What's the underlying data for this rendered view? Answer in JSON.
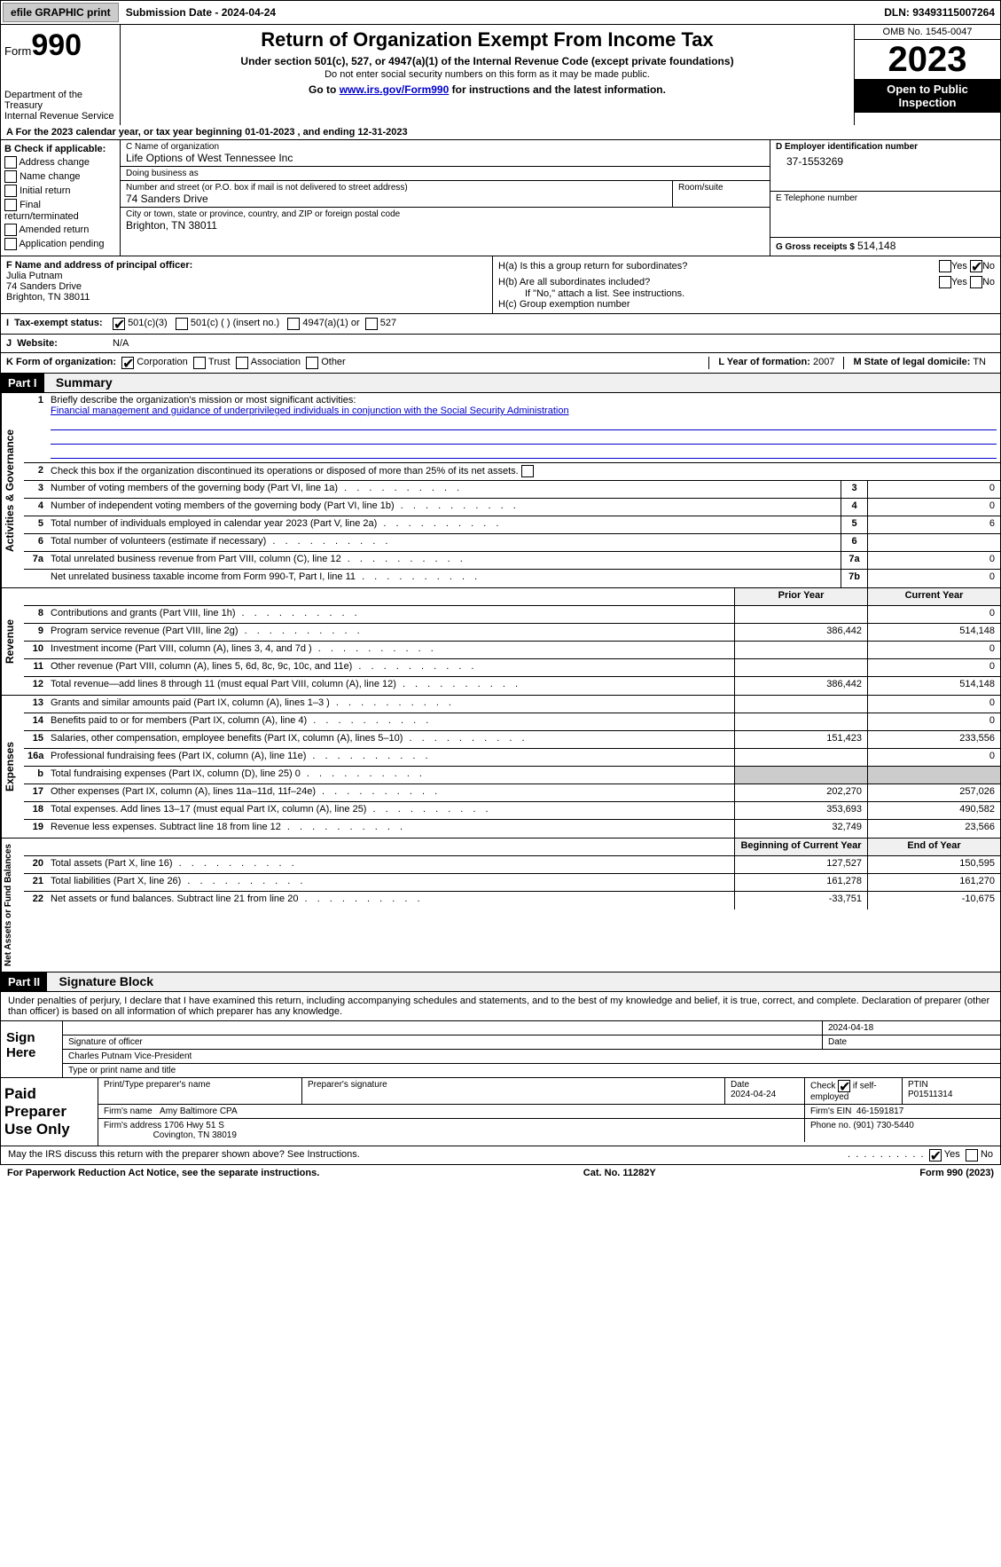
{
  "topbar": {
    "efile": "efile GRAPHIC print",
    "submission": "Submission Date - 2024-04-24",
    "dln": "DLN: 93493115007264"
  },
  "header": {
    "form_label": "Form",
    "form_num": "990",
    "dept": "Department of the Treasury",
    "irs": "Internal Revenue Service",
    "title": "Return of Organization Exempt From Income Tax",
    "subtitle": "Under section 501(c), 527, or 4947(a)(1) of the Internal Revenue Code (except private foundations)",
    "warn": "Do not enter social security numbers on this form as it may be made public.",
    "goto_pre": "Go to ",
    "goto_link": "www.irs.gov/Form990",
    "goto_post": " for instructions and the latest information.",
    "omb": "OMB No. 1545-0047",
    "year": "2023",
    "open": "Open to Public Inspection"
  },
  "line_a": "For the 2023 calendar year, or tax year beginning 01-01-2023    , and ending 12-31-2023",
  "section_b": {
    "hdr": "B Check if applicable:",
    "opts": [
      "Address change",
      "Name change",
      "Initial return",
      "Final return/terminated",
      "Amended return",
      "Application pending"
    ]
  },
  "section_c": {
    "name_lbl": "C Name of organization",
    "name": "Life Options of West Tennessee Inc",
    "dba_lbl": "Doing business as",
    "dba": "",
    "addr_lbl": "Number and street (or P.O. box if mail is not delivered to street address)",
    "addr": "74 Sanders Drive",
    "room_lbl": "Room/suite",
    "city_lbl": "City or town, state or province, country, and ZIP or foreign postal code",
    "city": "Brighton, TN  38011"
  },
  "section_d": {
    "lbl": "D Employer identification number",
    "val": "37-1553269"
  },
  "section_e": {
    "lbl": "E Telephone number",
    "val": ""
  },
  "section_g": {
    "lbl": "G Gross receipts $",
    "val": "514,148"
  },
  "section_f": {
    "lbl": "F  Name and address of principal officer:",
    "name": "Julia Putnam",
    "addr1": "74 Sanders Drive",
    "addr2": "Brighton, TN  38011"
  },
  "section_h": {
    "a": "H(a)  Is this a group return for subordinates?",
    "b": "H(b)  Are all subordinates included?",
    "note": "If \"No,\" attach a list. See instructions.",
    "c": "H(c)  Group exemption number",
    "yes": "Yes",
    "no": "No"
  },
  "line_i": {
    "lbl": "Tax-exempt status:",
    "o1": "501(c)(3)",
    "o2": "501(c) (  ) (insert no.)",
    "o3": "4947(a)(1) or",
    "o4": "527"
  },
  "line_j": {
    "lbl": "Website:",
    "val": "N/A"
  },
  "line_k": {
    "lbl": "K Form of organization:",
    "o1": "Corporation",
    "o2": "Trust",
    "o3": "Association",
    "o4": "Other"
  },
  "line_l": {
    "lbl": "L Year of formation:",
    "val": "2007"
  },
  "line_m": {
    "lbl": "M State of legal domicile:",
    "val": "TN"
  },
  "part1": {
    "hdr": "Part I",
    "title": "Summary"
  },
  "summary": {
    "q1": "Briefly describe the organization's mission or most significant activities:",
    "mission": "Financial management and guidance of underprivileged individuals in conjunction with the Social Security Administration",
    "q2": "Check this box      if the organization discontinued its operations or disposed of more than 25% of its net assets.",
    "rows_gov": [
      {
        "n": "3",
        "d": "Number of voting members of the governing body (Part VI, line 1a)",
        "b": "3",
        "v": "0"
      },
      {
        "n": "4",
        "d": "Number of independent voting members of the governing body (Part VI, line 1b)",
        "b": "4",
        "v": "0"
      },
      {
        "n": "5",
        "d": "Total number of individuals employed in calendar year 2023 (Part V, line 2a)",
        "b": "5",
        "v": "6"
      },
      {
        "n": "6",
        "d": "Total number of volunteers (estimate if necessary)",
        "b": "6",
        "v": ""
      },
      {
        "n": "7a",
        "d": "Total unrelated business revenue from Part VIII, column (C), line 12",
        "b": "7a",
        "v": "0"
      },
      {
        "n": "",
        "d": "Net unrelated business taxable income from Form 990-T, Part I, line 11",
        "b": "7b",
        "v": "0"
      }
    ],
    "prior_hdr": "Prior Year",
    "current_hdr": "Current Year",
    "rows_rev": [
      {
        "n": "8",
        "d": "Contributions and grants (Part VIII, line 1h)",
        "p": "",
        "c": "0"
      },
      {
        "n": "9",
        "d": "Program service revenue (Part VIII, line 2g)",
        "p": "386,442",
        "c": "514,148"
      },
      {
        "n": "10",
        "d": "Investment income (Part VIII, column (A), lines 3, 4, and 7d )",
        "p": "",
        "c": "0"
      },
      {
        "n": "11",
        "d": "Other revenue (Part VIII, column (A), lines 5, 6d, 8c, 9c, 10c, and 11e)",
        "p": "",
        "c": "0"
      },
      {
        "n": "12",
        "d": "Total revenue—add lines 8 through 11 (must equal Part VIII, column (A), line 12)",
        "p": "386,442",
        "c": "514,148"
      }
    ],
    "rows_exp": [
      {
        "n": "13",
        "d": "Grants and similar amounts paid (Part IX, column (A), lines 1–3 )",
        "p": "",
        "c": "0"
      },
      {
        "n": "14",
        "d": "Benefits paid to or for members (Part IX, column (A), line 4)",
        "p": "",
        "c": "0"
      },
      {
        "n": "15",
        "d": "Salaries, other compensation, employee benefits (Part IX, column (A), lines 5–10)",
        "p": "151,423",
        "c": "233,556"
      },
      {
        "n": "16a",
        "d": "Professional fundraising fees (Part IX, column (A), line 11e)",
        "p": "",
        "c": "0"
      },
      {
        "n": "b",
        "d": "Total fundraising expenses (Part IX, column (D), line 25) 0",
        "p": "shaded",
        "c": "shaded"
      },
      {
        "n": "17",
        "d": "Other expenses (Part IX, column (A), lines 11a–11d, 11f–24e)",
        "p": "202,270",
        "c": "257,026"
      },
      {
        "n": "18",
        "d": "Total expenses. Add lines 13–17 (must equal Part IX, column (A), line 25)",
        "p": "353,693",
        "c": "490,582"
      },
      {
        "n": "19",
        "d": "Revenue less expenses. Subtract line 18 from line 12",
        "p": "32,749",
        "c": "23,566"
      }
    ],
    "begin_hdr": "Beginning of Current Year",
    "end_hdr": "End of Year",
    "rows_net": [
      {
        "n": "20",
        "d": "Total assets (Part X, line 16)",
        "p": "127,527",
        "c": "150,595"
      },
      {
        "n": "21",
        "d": "Total liabilities (Part X, line 26)",
        "p": "161,278",
        "c": "161,270"
      },
      {
        "n": "22",
        "d": "Net assets or fund balances. Subtract line 21 from line 20",
        "p": "-33,751",
        "c": "-10,675"
      }
    ],
    "side1": "Activities & Governance",
    "side2": "Revenue",
    "side3": "Expenses",
    "side4": "Net Assets or Fund Balances"
  },
  "part2": {
    "hdr": "Part II",
    "title": "Signature Block"
  },
  "perjury": "Under penalties of perjury, I declare that I have examined this return, including accompanying schedules and statements, and to the best of my knowledge and belief, it is true, correct, and complete. Declaration of preparer (other than officer) is based on all information of which preparer has any knowledge.",
  "sign": {
    "lbl": "Sign Here",
    "date": "2024-04-18",
    "sig_lbl": "Signature of officer",
    "date_lbl": "Date",
    "officer": "Charles Putnam  Vice-President",
    "type_lbl": "Type or print name and title"
  },
  "paid": {
    "lbl": "Paid Preparer Use Only",
    "h1": "Print/Type preparer's name",
    "h2": "Preparer's signature",
    "h3": "Date",
    "h3v": "2024-04-24",
    "h4a": "Check",
    "h4b": "if self-employed",
    "h5": "PTIN",
    "h5v": "P01511314",
    "firm_lbl": "Firm's name",
    "firm": "Amy Baltimore CPA",
    "ein_lbl": "Firm's EIN",
    "ein": "46-1591817",
    "addr_lbl": "Firm's address",
    "addr1": "1706 Hwy 51 S",
    "addr2": "Covington, TN  38019",
    "phone_lbl": "Phone no.",
    "phone": "(901) 730-5440"
  },
  "discuss": {
    "q": "May the IRS discuss this return with the preparer shown above? See Instructions.",
    "yes": "Yes",
    "no": "No"
  },
  "footer": {
    "left": "For Paperwork Reduction Act Notice, see the separate instructions.",
    "mid": "Cat. No. 11282Y",
    "right_a": "Form ",
    "right_b": "990",
    "right_c": " (2023)"
  }
}
